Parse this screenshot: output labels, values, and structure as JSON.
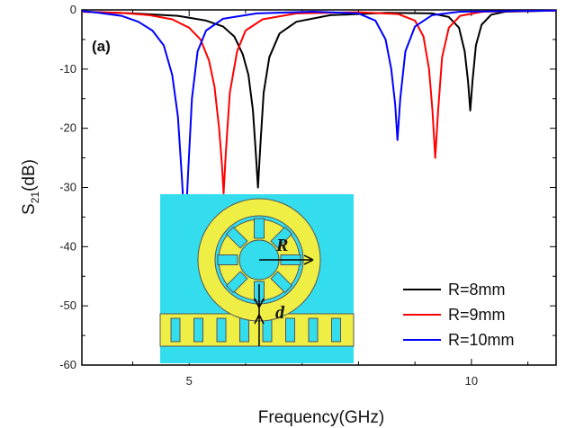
{
  "chart_data": {
    "type": "line",
    "title": "",
    "panel_label": "(a)",
    "xlabel": "Frequency(GHz)",
    "ylabel_main": "S",
    "ylabel_sub": "21",
    "ylabel_tail": "(dB)",
    "xlim": [
      3.1,
      11.5
    ],
    "ylim": [
      -60,
      0
    ],
    "xticks": [
      {
        "value": 5,
        "label": "5"
      },
      {
        "value": 10,
        "label": "10"
      }
    ],
    "yticks": [
      {
        "value": 0,
        "label": "0"
      },
      {
        "value": -10,
        "label": "-10"
      },
      {
        "value": -20,
        "label": "-20"
      },
      {
        "value": -30,
        "label": "-30"
      },
      {
        "value": -40,
        "label": "-40"
      },
      {
        "value": -50,
        "label": "-50"
      },
      {
        "value": -60,
        "label": "-60"
      }
    ],
    "grid": false,
    "legend_position": "bottom-right",
    "series": [
      {
        "name": "R=8mm",
        "color": "#000000",
        "points": [
          [
            3.1,
            -0.3
          ],
          [
            4.0,
            -0.6
          ],
          [
            4.8,
            -1.0
          ],
          [
            5.3,
            -1.8
          ],
          [
            5.6,
            -2.8
          ],
          [
            5.8,
            -4.5
          ],
          [
            5.95,
            -7.5
          ],
          [
            6.05,
            -11
          ],
          [
            6.13,
            -17
          ],
          [
            6.18,
            -24
          ],
          [
            6.22,
            -30
          ],
          [
            6.26,
            -23
          ],
          [
            6.32,
            -14
          ],
          [
            6.42,
            -8
          ],
          [
            6.6,
            -4
          ],
          [
            6.9,
            -2
          ],
          [
            7.5,
            -0.9
          ],
          [
            8.5,
            -0.5
          ],
          [
            9.3,
            -0.6
          ],
          [
            9.6,
            -1.2
          ],
          [
            9.78,
            -3
          ],
          [
            9.88,
            -7
          ],
          [
            9.94,
            -12
          ],
          [
            9.98,
            -17
          ],
          [
            10.02,
            -12
          ],
          [
            10.08,
            -6
          ],
          [
            10.18,
            -2.5
          ],
          [
            10.35,
            -0.8
          ],
          [
            10.6,
            -0.3
          ],
          [
            11.5,
            -0.1
          ]
        ]
      },
      {
        "name": "R=9mm",
        "color": "#ff0000",
        "points": [
          [
            3.1,
            -0.3
          ],
          [
            3.8,
            -0.5
          ],
          [
            4.3,
            -0.9
          ],
          [
            4.7,
            -1.6
          ],
          [
            5.0,
            -3
          ],
          [
            5.2,
            -5
          ],
          [
            5.35,
            -8.5
          ],
          [
            5.45,
            -13
          ],
          [
            5.53,
            -20
          ],
          [
            5.58,
            -26
          ],
          [
            5.61,
            -31
          ],
          [
            5.65,
            -24
          ],
          [
            5.72,
            -14
          ],
          [
            5.85,
            -7
          ],
          [
            6.0,
            -3.5
          ],
          [
            6.3,
            -1.6
          ],
          [
            6.9,
            -0.6
          ],
          [
            8.0,
            -0.4
          ],
          [
            8.7,
            -0.7
          ],
          [
            9.0,
            -1.8
          ],
          [
            9.15,
            -4.5
          ],
          [
            9.25,
            -10
          ],
          [
            9.31,
            -17
          ],
          [
            9.36,
            -25
          ],
          [
            9.41,
            -17
          ],
          [
            9.48,
            -8
          ],
          [
            9.6,
            -3
          ],
          [
            9.8,
            -1
          ],
          [
            10.2,
            -0.3
          ],
          [
            11.5,
            -0.1
          ]
        ]
      },
      {
        "name": "R=10mm",
        "color": "#0000ff",
        "points": [
          [
            3.1,
            -0.2
          ],
          [
            3.4,
            -0.5
          ],
          [
            3.8,
            -1
          ],
          [
            4.1,
            -2
          ],
          [
            4.35,
            -3.5
          ],
          [
            4.55,
            -6
          ],
          [
            4.7,
            -11
          ],
          [
            4.8,
            -18
          ],
          [
            4.87,
            -28
          ],
          [
            4.93,
            -38
          ],
          [
            4.98,
            -28
          ],
          [
            5.05,
            -15
          ],
          [
            5.15,
            -7
          ],
          [
            5.3,
            -3.5
          ],
          [
            5.6,
            -1.5
          ],
          [
            6.2,
            -0.6
          ],
          [
            7.2,
            -0.3
          ],
          [
            8.0,
            -0.6
          ],
          [
            8.3,
            -1.8
          ],
          [
            8.48,
            -5
          ],
          [
            8.58,
            -10
          ],
          [
            8.65,
            -16
          ],
          [
            8.69,
            -22
          ],
          [
            8.74,
            -15
          ],
          [
            8.83,
            -7
          ],
          [
            9.0,
            -2.8
          ],
          [
            9.3,
            -0.9
          ],
          [
            9.8,
            -0.3
          ],
          [
            11.5,
            -0.1
          ]
        ]
      }
    ]
  },
  "inset": {
    "label_R": "R",
    "label_d": "d",
    "bg_color": "#33ddee",
    "metal_color": "#eeee44"
  }
}
